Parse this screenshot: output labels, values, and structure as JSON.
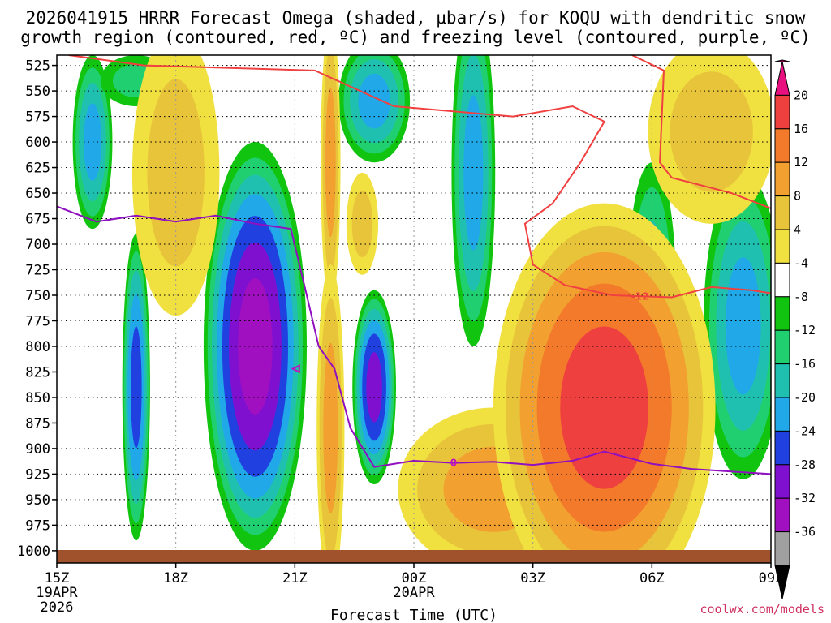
{
  "chart_data": {
    "type": "heatmap",
    "title_line1": "2026041915 HRRR Forecast Omega (shaded, μbar/s) for KOQU with dendritic snow",
    "title_line2": "growth region (contoured, red, ºC) and freezing level (contoured, purple, ºC)",
    "xlabel": "Forecast Time (UTC)",
    "x_ticks": [
      {
        "hour": 0,
        "label": "15Z",
        "date1": "19APR",
        "date2": "2026"
      },
      {
        "hour": 3,
        "label": "18Z"
      },
      {
        "hour": 6,
        "label": "21Z"
      },
      {
        "hour": 9,
        "label": "00Z",
        "date1": "20APR"
      },
      {
        "hour": 12,
        "label": "03Z"
      },
      {
        "hour": 15,
        "label": "06Z"
      },
      {
        "hour": 18,
        "label": "09Z"
      }
    ],
    "y_ticks": [
      525,
      550,
      575,
      600,
      625,
      650,
      675,
      700,
      725,
      750,
      775,
      800,
      825,
      850,
      875,
      900,
      925,
      950,
      975,
      1000
    ],
    "x_range_hours": [
      0,
      18
    ],
    "y_range_mb": [
      515,
      1012
    ],
    "colorbar": {
      "labels": [
        "20",
        "16",
        "12",
        "8",
        "4",
        "-4",
        "-8",
        "-12",
        "-16",
        "-20",
        "-24",
        "-28",
        "-32",
        "-36"
      ],
      "colors": [
        "#e8107f",
        "#ef4040",
        "#f27a2a",
        "#f2a030",
        "#e8c43a",
        "#f0e040",
        "#ffffff",
        "#10c410",
        "#20d070",
        "#20c0b0",
        "#20a8e8",
        "#2040e0",
        "#8010d0",
        "#a010c0",
        "#a0a0a0",
        "#000000"
      ]
    },
    "omega_features": [
      {
        "sign": "up",
        "x": 0.9,
        "y": 600,
        "rx": 0.5,
        "ry": 85,
        "peak": -16
      },
      {
        "sign": "up",
        "x": 2.0,
        "y": 540,
        "rx": 0.9,
        "ry": 25,
        "peak": -8
      },
      {
        "sign": "up",
        "x": 2.0,
        "y": 840,
        "rx": 0.35,
        "ry": 150,
        "peak": -20
      },
      {
        "sign": "up",
        "x": 5.0,
        "y": 800,
        "rx": 1.3,
        "ry": 200,
        "peak": -28
      },
      {
        "sign": "up",
        "x": 8.0,
        "y": 560,
        "rx": 0.9,
        "ry": 60,
        "peak": -16
      },
      {
        "sign": "up",
        "x": 8.0,
        "y": 840,
        "rx": 0.55,
        "ry": 95,
        "peak": -24
      },
      {
        "sign": "up",
        "x": 10.5,
        "y": 630,
        "rx": 0.55,
        "ry": 170,
        "peak": -16
      },
      {
        "sign": "up",
        "x": 15.0,
        "y": 740,
        "rx": 0.6,
        "ry": 120,
        "peak": -12
      },
      {
        "sign": "up",
        "x": 17.3,
        "y": 780,
        "rx": 1.0,
        "ry": 150,
        "peak": -16
      },
      {
        "sign": "down",
        "x": 3.0,
        "y": 630,
        "rx": 1.1,
        "ry": 140,
        "peak": 8
      },
      {
        "sign": "down",
        "x": 6.9,
        "y": 620,
        "rx": 0.25,
        "ry": 140,
        "peak": 12
      },
      {
        "sign": "down",
        "x": 6.9,
        "y": 880,
        "rx": 0.35,
        "ry": 160,
        "peak": 12
      },
      {
        "sign": "down",
        "x": 7.7,
        "y": 680,
        "rx": 0.4,
        "ry": 50,
        "peak": 8
      },
      {
        "sign": "down",
        "x": 11.0,
        "y": 940,
        "rx": 2.4,
        "ry": 80,
        "peak": 12
      },
      {
        "sign": "down",
        "x": 13.8,
        "y": 860,
        "rx": 2.8,
        "ry": 200,
        "peak": 20
      },
      {
        "sign": "down",
        "x": 16.5,
        "y": 590,
        "rx": 1.6,
        "ry": 90,
        "peak": 8
      }
    ],
    "dendritic_contour_label": "-12",
    "dendritic_contour": [
      [
        0.3,
        515
      ],
      [
        2.2,
        525
      ],
      [
        6.5,
        530
      ],
      [
        8.5,
        565
      ],
      [
        11.5,
        575
      ],
      [
        13.0,
        565
      ],
      [
        13.8,
        580
      ],
      [
        13.2,
        620
      ],
      [
        12.5,
        660
      ],
      [
        11.8,
        680
      ],
      [
        12.0,
        720
      ],
      [
        12.8,
        740
      ],
      [
        14.0,
        750
      ],
      [
        15.5,
        752
      ],
      [
        16.5,
        742
      ],
      [
        17.5,
        745
      ],
      [
        18.0,
        748
      ]
    ],
    "dendritic_contour_2": [
      [
        14.5,
        515
      ],
      [
        15.3,
        530
      ],
      [
        15.2,
        620
      ],
      [
        15.5,
        635
      ],
      [
        17.0,
        650
      ],
      [
        18.0,
        665
      ]
    ],
    "freezing_level_label": "0",
    "freezing_level": [
      [
        0,
        663
      ],
      [
        1.0,
        678
      ],
      [
        2.0,
        672
      ],
      [
        3.0,
        678
      ],
      [
        4.0,
        672
      ],
      [
        5.0,
        680
      ],
      [
        5.9,
        685
      ],
      [
        6.3,
        750
      ],
      [
        6.6,
        800
      ],
      [
        7.0,
        822
      ],
      [
        7.4,
        880
      ],
      [
        8.0,
        918
      ],
      [
        9.0,
        912
      ],
      [
        10.0,
        914
      ],
      [
        11.0,
        913
      ],
      [
        12.0,
        916
      ],
      [
        13.0,
        912
      ],
      [
        13.8,
        903
      ],
      [
        15.0,
        915
      ],
      [
        16.0,
        920
      ],
      [
        18.0,
        925
      ]
    ],
    "terrain_color": "#a0522d"
  },
  "credit": "coolwx.com/models"
}
